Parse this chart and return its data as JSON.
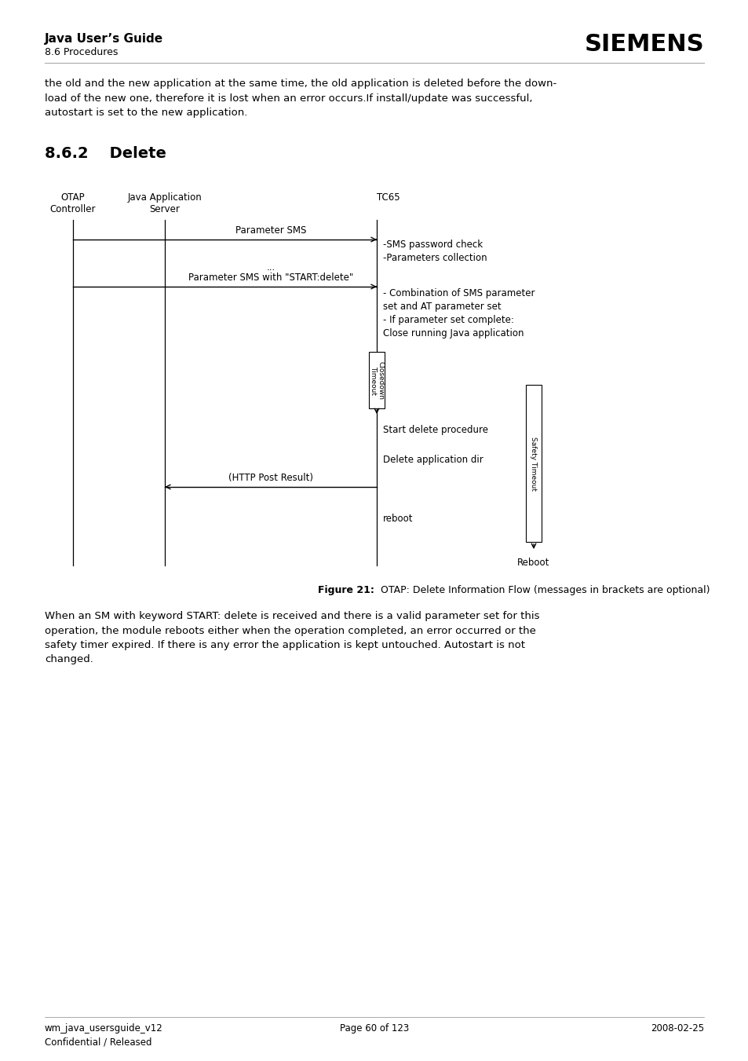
{
  "page_title_left": "Java User’s Guide",
  "page_subtitle_left": "8.6 Procedures",
  "page_title_right": "SIEMENS",
  "section_heading": "8.6.2    Delete",
  "body_text_top": "the old and the new application at the same time, the old application is deleted before the down-\nload of the new one, therefore it is lost when an error occurs.If install/update was successful,\nautostart is set to the new application.",
  "body_text_bottom": "When an SM with keyword START: delete is received and there is a valid parameter set for this\noperation, the module reboots either when the operation completed, an error occurred or the\nsafety timer expired. If there is any error the application is kept untouched. Autostart is not\nchanged.",
  "figure_caption_bold": "Figure 21:",
  "figure_caption_rest": "  OTAP: Delete Information Flow (messages in brackets are optional)",
  "footer_left": "wm_java_usersguide_v12\nConfidential / Released",
  "footer_center": "Page 60 of 123",
  "footer_right": "2008-02-25",
  "bg_color": "#ffffff",
  "text_color": "#000000",
  "line_color": "#000000",
  "font_size_body": 9.5,
  "font_size_heading": 14,
  "font_size_diagram": 8.5
}
